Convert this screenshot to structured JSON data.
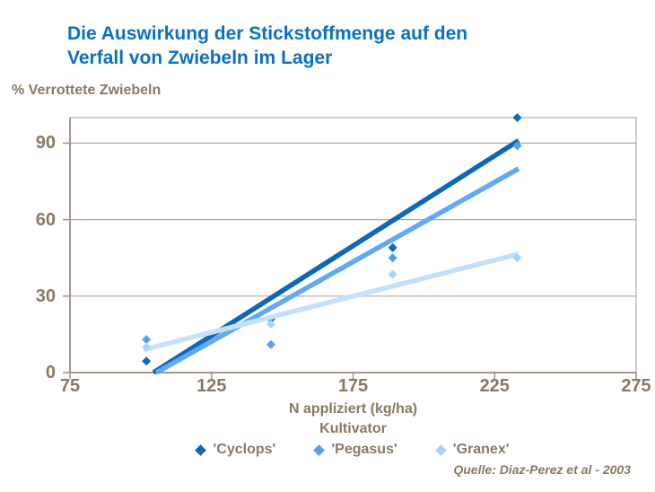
{
  "title": {
    "lines": [
      "Die Auswirkung der Stickstoffmenge auf den",
      "Verfall von Zwiebeln im Lager"
    ]
  },
  "source": "Quelle: Diaz-Perez et al - 2003",
  "colors": {
    "title_blue": "#0B70C4",
    "text_brown": "#897963",
    "axis_line": "#A59788",
    "grid_line": "#B6AA9C",
    "background": "#FFFFFF"
  },
  "chart_data": {
    "type": "scatter",
    "title": "Die Auswirkung der Stickstoffmenge auf den Verfall von Zwiebeln im Lager",
    "xlabel": "N appliziert (kg/ha)",
    "ylabel": "% Verrottete Zwiebeln",
    "legend_title": "Kultivator",
    "legend_position": "bottom",
    "xlim": [
      75,
      275
    ],
    "ylim": [
      0,
      100
    ],
    "x_ticks": [
      75,
      125,
      175,
      225,
      275
    ],
    "y_ticks": [
      0,
      30,
      60,
      90
    ],
    "grid": "horizontal",
    "marker": "diamond",
    "series": [
      {
        "name": "'Cyclops'",
        "marker_color": "#1268B2",
        "line_color": "#0F68B3",
        "points": [
          [
            102,
            4.5
          ],
          [
            146,
            21
          ],
          [
            189,
            49
          ],
          [
            233,
            100
          ]
        ],
        "trend": [
          [
            104.5,
            0
          ],
          [
            233.5,
            91
          ]
        ]
      },
      {
        "name": "'Pegasus'",
        "marker_color": "#4FA1EE",
        "line_color": "#5FAAF3",
        "points": [
          [
            102,
            13
          ],
          [
            146,
            11
          ],
          [
            189,
            45
          ],
          [
            233,
            89
          ]
        ],
        "trend": [
          [
            105.5,
            0
          ],
          [
            233.5,
            80
          ]
        ]
      },
      {
        "name": "'Granex'",
        "marker_color": "#A9D4F9",
        "line_color": "#C3E1FC",
        "points": [
          [
            102,
            10
          ],
          [
            146,
            19
          ],
          [
            189,
            38.5
          ],
          [
            233,
            45
          ]
        ],
        "trend": [
          [
            101,
            9
          ],
          [
            233.5,
            46.5
          ]
        ]
      }
    ]
  }
}
